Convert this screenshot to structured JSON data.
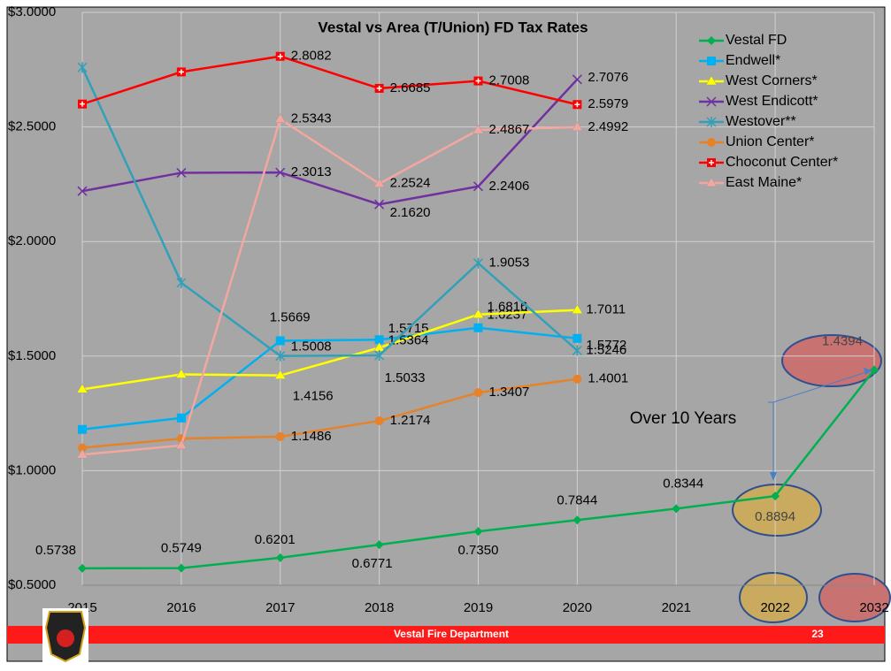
{
  "chart_data": {
    "type": "line",
    "title": "Vestal vs Area (T/Union) FD Tax  Rates",
    "categories": [
      "2015",
      "2016",
      "2017",
      "2018",
      "2019",
      "2020",
      "2021",
      "2022",
      "2032"
    ],
    "ylim": [
      0.5,
      3.0
    ],
    "yticks": [
      {
        "value": 0.5,
        "label": "$0.5000"
      },
      {
        "value": 1.0,
        "label": "$1.0000"
      },
      {
        "value": 1.5,
        "label": "$1.5000"
      },
      {
        "value": 2.0,
        "label": "$2.0000"
      },
      {
        "value": 2.5,
        "label": "$2.5000"
      },
      {
        "value": 3.0,
        "label": "$3.0000"
      }
    ],
    "grid": true,
    "legend": "top-right",
    "series": [
      {
        "name": "Vestal FD",
        "color": "#00b050",
        "values": [
          0.5738,
          0.5749,
          0.6201,
          0.6771,
          0.735,
          0.7844,
          0.8344,
          0.8894,
          1.4394
        ],
        "value_labels": [
          "0.5738",
          "0.5749",
          "0.6201",
          "0.6771",
          "0.7350",
          "0.7844",
          "0.8344",
          "0.8894",
          "1.4394"
        ]
      },
      {
        "name": "Endwell*",
        "color": "#00b0f0",
        "values": [
          1.18,
          1.23,
          1.5669,
          1.5715,
          1.6237,
          1.5772,
          null,
          null,
          null
        ],
        "value_labels": [
          null,
          null,
          "1.5669",
          "1.5715",
          "1.6237",
          "1.5772",
          null,
          null,
          null
        ]
      },
      {
        "name": "West Corners*",
        "color": "#ffff00",
        "values": [
          1.355,
          1.42,
          1.4156,
          1.5364,
          1.6816,
          1.7011,
          null,
          null,
          null
        ],
        "value_labels": [
          null,
          null,
          "1.4156",
          "1.5364",
          "1.6816",
          "1.7011",
          null,
          null,
          null
        ]
      },
      {
        "name": "West Endicott*",
        "color": "#7030a0",
        "values": [
          2.22,
          2.3,
          2.3013,
          2.162,
          2.2406,
          2.7076,
          null,
          null,
          null
        ],
        "value_labels": [
          null,
          null,
          "2.3013",
          "2.1620",
          "2.2406",
          "2.7076",
          null,
          null,
          null
        ]
      },
      {
        "name": "Westover**",
        "color": "#31a0b8",
        "values": [
          2.76,
          1.82,
          1.5008,
          1.5033,
          1.9053,
          1.5246,
          null,
          null,
          null
        ],
        "value_labels": [
          null,
          null,
          "1.5008",
          "1.5033",
          "1.9053",
          "1.5246",
          null,
          null,
          null
        ]
      },
      {
        "name": "Union Center*",
        "color": "#e6822a",
        "values": [
          1.1,
          1.14,
          1.1486,
          1.2174,
          1.3407,
          1.4001,
          null,
          null,
          null
        ],
        "value_labels": [
          null,
          null,
          "1.1486",
          "1.2174",
          "1.3407",
          "1.4001",
          null,
          null,
          null
        ]
      },
      {
        "name": "Choconut Center*",
        "color": "#ff0000",
        "values": [
          2.6,
          2.74,
          2.8082,
          2.6685,
          2.7008,
          2.5979,
          null,
          null,
          null
        ],
        "value_labels": [
          null,
          null,
          "2.8082",
          "2.6685",
          "2.7008",
          "2.5979",
          null,
          null,
          null
        ]
      },
      {
        "name": "East Maine*",
        "color": "#f4a6a0",
        "values": [
          1.07,
          1.11,
          2.5343,
          2.2524,
          2.4867,
          2.4992,
          null,
          null,
          null
        ],
        "value_labels": [
          null,
          null,
          "2.5343",
          "2.2524",
          "2.4867",
          "2.4992",
          null,
          null,
          null
        ]
      }
    ],
    "annotation": "Over 10 Years",
    "footer": "Vestal Fire Department",
    "page_number": "23"
  }
}
